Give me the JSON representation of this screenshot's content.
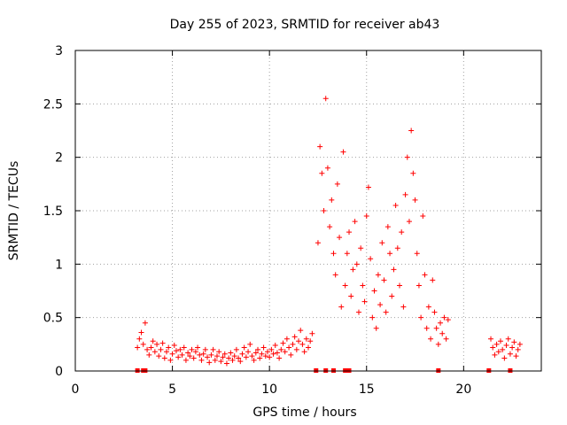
{
  "chart_data": {
    "type": "scatter",
    "title": "Day 255 of 2023, SRMTID for receiver ab43",
    "xlabel": "GPS time / hours",
    "ylabel": "SRMTID / TECUs",
    "xlim": [
      0,
      24
    ],
    "ylim": [
      0,
      3
    ],
    "xticks": [
      0,
      5,
      10,
      15,
      20
    ],
    "xtick_labels": [
      "0",
      "5",
      "10",
      "15",
      "20"
    ],
    "yticks": [
      0,
      0.5,
      1,
      1.5,
      2,
      2.5,
      3
    ],
    "ytick_labels": [
      "0",
      "0.5",
      "1",
      "1.5",
      "2",
      "2.5",
      "3"
    ],
    "grid": true,
    "marker": "+",
    "color": "#ff0000",
    "zero_markers_x": [
      3.2,
      3.5,
      3.6,
      12.4,
      12.9,
      13.3,
      13.9,
      14.1,
      18.7,
      21.3,
      22.4
    ],
    "series": [
      {
        "name": "SRMTID",
        "segments": [
          {
            "x": [
              3.2,
              3.3,
              3.4,
              3.5,
              3.6,
              3.7,
              3.8,
              3.9,
              4.0,
              4.1,
              4.2,
              4.3,
              4.4,
              4.5,
              4.6,
              4.7,
              4.8,
              4.9,
              5.0,
              5.1,
              5.2,
              5.3,
              5.4,
              5.5,
              5.6,
              5.7,
              5.8,
              5.9,
              6.0,
              6.1,
              6.2,
              6.3,
              6.4,
              6.5,
              6.6,
              6.7,
              6.8,
              6.9,
              7.0,
              7.1,
              7.2,
              7.3,
              7.4,
              7.5,
              7.6,
              7.7,
              7.8,
              7.9,
              8.0,
              8.1,
              8.2,
              8.3,
              8.4,
              8.5,
              8.6,
              8.7,
              8.8,
              8.9,
              9.0,
              9.1,
              9.2,
              9.3,
              9.4,
              9.5,
              9.6,
              9.7,
              9.8,
              9.9,
              10.0,
              10.1,
              10.2,
              10.3,
              10.4,
              10.5,
              10.6,
              10.7,
              10.8,
              10.9,
              11.0,
              11.1,
              11.2,
              11.3,
              11.4,
              11.5,
              11.6,
              11.7,
              11.8,
              11.9,
              12.0,
              12.1,
              12.2
            ],
            "y": [
              0.22,
              0.3,
              0.36,
              0.25,
              0.45,
              0.2,
              0.15,
              0.22,
              0.28,
              0.18,
              0.25,
              0.14,
              0.2,
              0.26,
              0.12,
              0.18,
              0.22,
              0.1,
              0.16,
              0.24,
              0.19,
              0.13,
              0.2,
              0.15,
              0.22,
              0.1,
              0.17,
              0.14,
              0.2,
              0.12,
              0.18,
              0.22,
              0.15,
              0.1,
              0.16,
              0.2,
              0.13,
              0.08,
              0.15,
              0.2,
              0.1,
              0.14,
              0.18,
              0.09,
              0.13,
              0.16,
              0.07,
              0.12,
              0.17,
              0.1,
              0.14,
              0.2,
              0.12,
              0.09,
              0.16,
              0.22,
              0.13,
              0.18,
              0.25,
              0.14,
              0.1,
              0.17,
              0.2,
              0.12,
              0.16,
              0.22,
              0.14,
              0.18,
              0.13,
              0.2,
              0.16,
              0.24,
              0.17,
              0.12,
              0.2,
              0.26,
              0.18,
              0.3,
              0.22,
              0.15,
              0.25,
              0.32,
              0.2,
              0.28,
              0.38,
              0.25,
              0.18,
              0.3,
              0.22,
              0.28,
              0.35
            ]
          },
          {
            "x": [
              12.5,
              12.6,
              12.7,
              12.8,
              12.9,
              13.0,
              13.1,
              13.2,
              13.3,
              13.4,
              13.5,
              13.6,
              13.7,
              13.8,
              13.9,
              14.0,
              14.1,
              14.2,
              14.3,
              14.4,
              14.5,
              14.6,
              14.7,
              14.8,
              14.9,
              15.0,
              15.1,
              15.2,
              15.3,
              15.4,
              15.5,
              15.6,
              15.7,
              15.8,
              15.9,
              16.0,
              16.1,
              16.2,
              16.3,
              16.4,
              16.5,
              16.6,
              16.7,
              16.8,
              16.9,
              17.0,
              17.1,
              17.2,
              17.3,
              17.4,
              17.5,
              17.6,
              17.7,
              17.8,
              17.9,
              18.0,
              18.1,
              18.2,
              18.3,
              18.4,
              18.5,
              18.6,
              18.7,
              18.8,
              18.9,
              19.0,
              19.1,
              19.2
            ],
            "y": [
              1.2,
              2.1,
              1.85,
              1.5,
              2.55,
              1.9,
              1.35,
              1.6,
              1.1,
              0.9,
              1.75,
              1.25,
              0.6,
              2.05,
              0.8,
              1.1,
              1.3,
              0.7,
              0.95,
              1.4,
              1.0,
              0.55,
              1.15,
              0.8,
              0.65,
              1.45,
              1.72,
              1.05,
              0.5,
              0.75,
              0.4,
              0.9,
              0.62,
              1.2,
              0.85,
              0.55,
              1.35,
              1.1,
              0.7,
              0.95,
              1.55,
              1.15,
              0.8,
              1.3,
              0.6,
              1.65,
              2.0,
              1.4,
              2.25,
              1.85,
              1.6,
              1.1,
              0.8,
              0.5,
              1.45,
              0.9,
              0.4,
              0.6,
              0.3,
              0.85,
              0.55,
              0.4,
              0.25,
              0.45,
              0.35,
              0.5,
              0.3,
              0.48
            ]
          },
          {
            "x": [
              21.4,
              21.5,
              21.6,
              21.7,
              21.8,
              21.9,
              22.0,
              22.1,
              22.2,
              22.3,
              22.4,
              22.5,
              22.6,
              22.7,
              22.8,
              22.9
            ],
            "y": [
              0.3,
              0.22,
              0.15,
              0.25,
              0.18,
              0.28,
              0.2,
              0.12,
              0.24,
              0.3,
              0.16,
              0.22,
              0.27,
              0.14,
              0.2,
              0.25
            ]
          }
        ]
      }
    ]
  }
}
